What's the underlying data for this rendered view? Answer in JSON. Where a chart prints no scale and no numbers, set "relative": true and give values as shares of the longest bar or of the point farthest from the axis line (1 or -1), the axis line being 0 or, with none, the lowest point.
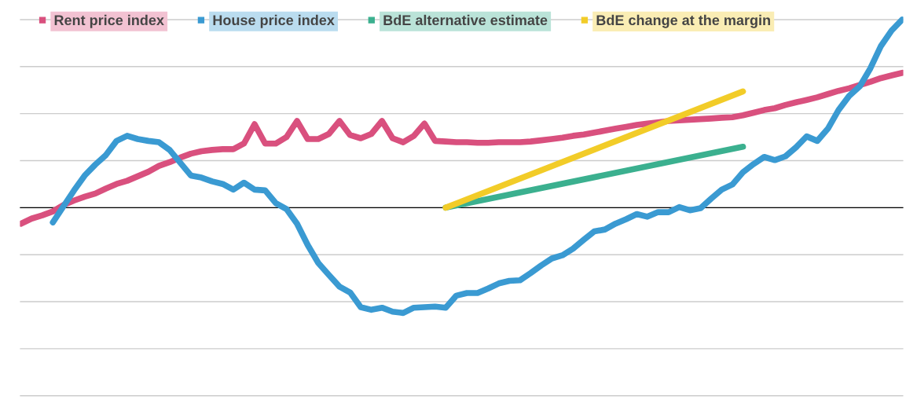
{
  "chart_data": {
    "type": "line",
    "relative": true,
    "grid": "y",
    "legend": "top left",
    "categories": [
      null,
      null,
      null,
      null,
      null,
      null,
      null,
      null,
      null,
      null,
      null,
      null,
      null,
      null,
      null,
      null,
      null,
      null,
      null,
      null,
      null,
      null,
      null,
      null,
      null,
      null,
      null,
      null,
      null,
      null,
      null,
      null,
      null,
      null,
      null,
      null,
      null,
      null,
      null,
      null,
      null,
      null,
      null,
      null,
      null,
      null,
      null,
      null,
      null,
      null,
      null,
      null,
      null,
      null,
      null,
      null,
      null,
      null,
      null,
      null,
      null,
      null,
      null,
      null,
      null,
      null,
      null,
      null,
      null,
      null,
      null,
      null,
      null,
      null,
      null,
      null,
      null,
      null,
      null,
      null,
      null,
      null,
      null,
      null
    ],
    "series": [
      {
        "name": "Rent price index",
        "color": "#d9507e",
        "values": [
          -0.085,
          -0.058,
          -0.041,
          -0.02,
          0.014,
          0.038,
          0.058,
          0.075,
          0.102,
          0.126,
          0.143,
          0.167,
          0.191,
          0.222,
          0.242,
          0.266,
          0.287,
          0.3,
          0.307,
          0.311,
          0.311,
          0.341,
          0.444,
          0.341,
          0.341,
          0.375,
          0.461,
          0.365,
          0.365,
          0.392,
          0.461,
          0.386,
          0.369,
          0.392,
          0.461,
          0.369,
          0.348,
          0.382,
          0.447,
          0.355,
          0.352,
          0.348,
          0.348,
          0.345,
          0.345,
          0.348,
          0.348,
          0.348,
          0.352,
          0.358,
          0.365,
          0.372,
          0.382,
          0.389,
          0.399,
          0.41,
          0.42,
          0.43,
          0.44,
          0.447,
          0.454,
          0.461,
          0.464,
          0.468,
          0.471,
          0.474,
          0.478,
          0.481,
          0.491,
          0.505,
          0.519,
          0.529,
          0.546,
          0.56,
          0.573,
          0.587,
          0.604,
          0.621,
          0.635,
          0.652,
          0.669,
          0.689,
          0.703,
          0.717
        ]
      },
      {
        "name": "House price index",
        "color": "#3a9ad2",
        "values": [
          null,
          null,
          null,
          -0.078,
          0.007,
          0.092,
          0.171,
          0.229,
          0.28,
          0.355,
          0.382,
          0.365,
          0.355,
          0.348,
          0.307,
          0.239,
          0.171,
          0.16,
          0.14,
          0.126,
          0.096,
          0.133,
          0.096,
          0.092,
          0.024,
          -0.007,
          -0.085,
          -0.198,
          -0.294,
          -0.358,
          -0.42,
          -0.451,
          -0.529,
          -0.543,
          -0.532,
          -0.553,
          -0.56,
          -0.532,
          -0.529,
          -0.526,
          -0.532,
          -0.468,
          -0.454,
          -0.454,
          -0.43,
          -0.403,
          -0.389,
          -0.386,
          -0.348,
          -0.307,
          -0.27,
          -0.253,
          -0.218,
          -0.171,
          -0.126,
          -0.116,
          -0.085,
          -0.061,
          -0.034,
          -0.048,
          -0.024,
          -0.024,
          0.003,
          -0.014,
          -0.003,
          0.048,
          0.096,
          0.123,
          0.188,
          0.232,
          0.27,
          0.253,
          0.273,
          0.321,
          0.379,
          0.355,
          0.42,
          0.519,
          0.594,
          0.645,
          0.741,
          0.86,
          0.942,
          1
        ]
      },
      {
        "name": "BdE alternative estimate",
        "color": "#3bb08f",
        "values": [
          null,
          null,
          null,
          null,
          null,
          null,
          null,
          null,
          null,
          null,
          null,
          null,
          null,
          null,
          null,
          null,
          null,
          null,
          null,
          null,
          null,
          null,
          null,
          null,
          null,
          null,
          null,
          null,
          null,
          null,
          null,
          null,
          null,
          null,
          null,
          null,
          null,
          null,
          null,
          null,
          0,
          null,
          null,
          null,
          null,
          null,
          null,
          null,
          null,
          null,
          null,
          null,
          null,
          null,
          null,
          null,
          null,
          null,
          null,
          null,
          null,
          null,
          null,
          null,
          null,
          null,
          null,
          null,
          0.324,
          null,
          null,
          null,
          null,
          null,
          null,
          null,
          null,
          null,
          null,
          null,
          null,
          null,
          null,
          null
        ]
      },
      {
        "name": "BdE change at the margin",
        "color": "#f2cc28",
        "values": [
          null,
          null,
          null,
          null,
          null,
          null,
          null,
          null,
          null,
          null,
          null,
          null,
          null,
          null,
          null,
          null,
          null,
          null,
          null,
          null,
          null,
          null,
          null,
          null,
          null,
          null,
          null,
          null,
          null,
          null,
          null,
          null,
          null,
          null,
          null,
          null,
          null,
          null,
          null,
          null,
          0,
          null,
          null,
          null,
          null,
          null,
          null,
          null,
          null,
          null,
          null,
          null,
          null,
          null,
          null,
          null,
          null,
          null,
          null,
          null,
          null,
          null,
          null,
          null,
          null,
          null,
          null,
          null,
          0.618,
          null,
          null,
          null,
          null,
          null,
          null,
          null,
          null,
          null,
          null,
          null,
          null,
          null,
          null,
          null
        ]
      }
    ]
  }
}
